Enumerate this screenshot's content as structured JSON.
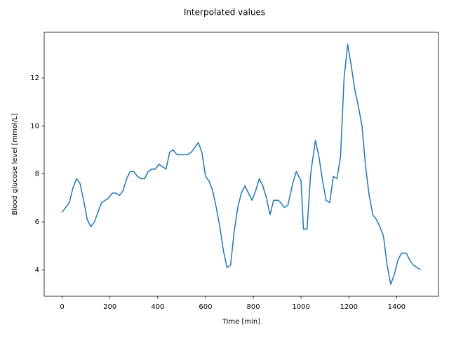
{
  "chart_data": {
    "type": "line",
    "title": "Interpolated values",
    "x_label": "Time [min]",
    "y_label": "Blood glucose level [mmol/L]",
    "x": [
      0,
      30,
      45,
      60,
      75,
      90,
      105,
      120,
      135,
      165,
      195,
      210,
      225,
      240,
      255,
      270,
      285,
      300,
      315,
      330,
      345,
      360,
      375,
      390,
      405,
      435,
      450,
      465,
      480,
      525,
      540,
      570,
      585,
      600,
      615,
      630,
      645,
      660,
      675,
      690,
      705,
      720,
      735,
      750,
      765,
      780,
      795,
      810,
      825,
      840,
      855,
      870,
      885,
      905,
      915,
      930,
      945,
      965,
      980,
      1000,
      1010,
      1025,
      1040,
      1060,
      1075,
      1090,
      1105,
      1120,
      1135,
      1150,
      1165,
      1180,
      1195,
      1210,
      1225,
      1240,
      1255,
      1270,
      1285,
      1300,
      1315,
      1330,
      1345,
      1360,
      1375,
      1390,
      1405,
      1420,
      1440,
      1455,
      1470,
      1500
    ],
    "series": [
      {
        "name": "glucose",
        "color": "#1f77b4",
        "values": [
          6.4,
          6.8,
          7.4,
          7.8,
          7.6,
          6.9,
          6.1,
          5.8,
          6.0,
          6.8,
          7.0,
          7.2,
          7.2,
          7.1,
          7.3,
          7.8,
          8.1,
          8.1,
          7.9,
          7.8,
          7.8,
          8.1,
          8.2,
          8.2,
          8.4,
          8.2,
          8.9,
          9.0,
          8.8,
          8.8,
          8.9,
          9.3,
          8.9,
          7.9,
          7.7,
          7.3,
          6.6,
          5.8,
          4.8,
          4.1,
          4.2,
          5.6,
          6.6,
          7.2,
          7.5,
          7.2,
          6.9,
          7.3,
          7.8,
          7.5,
          7.0,
          6.3,
          6.9,
          6.9,
          6.8,
          6.6,
          6.7,
          7.6,
          8.1,
          7.7,
          5.7,
          5.7,
          8.0,
          9.4,
          8.7,
          7.7,
          6.9,
          6.8,
          7.9,
          7.8,
          8.7,
          12.0,
          13.4,
          12.5,
          11.5,
          10.8,
          10.0,
          8.3,
          7.1,
          6.3,
          6.1,
          5.8,
          5.4,
          4.2,
          3.4,
          3.8,
          4.4,
          4.7,
          4.7,
          4.4,
          4.2,
          4.0
        ]
      }
    ],
    "xlim": [
      -75,
      1575
    ],
    "xticks": [
      0,
      200,
      400,
      600,
      800,
      1000,
      1200,
      1400
    ],
    "ylim": [
      2.9,
      13.9
    ],
    "yticks": [
      4,
      6,
      8,
      10,
      12
    ],
    "grid": false
  }
}
